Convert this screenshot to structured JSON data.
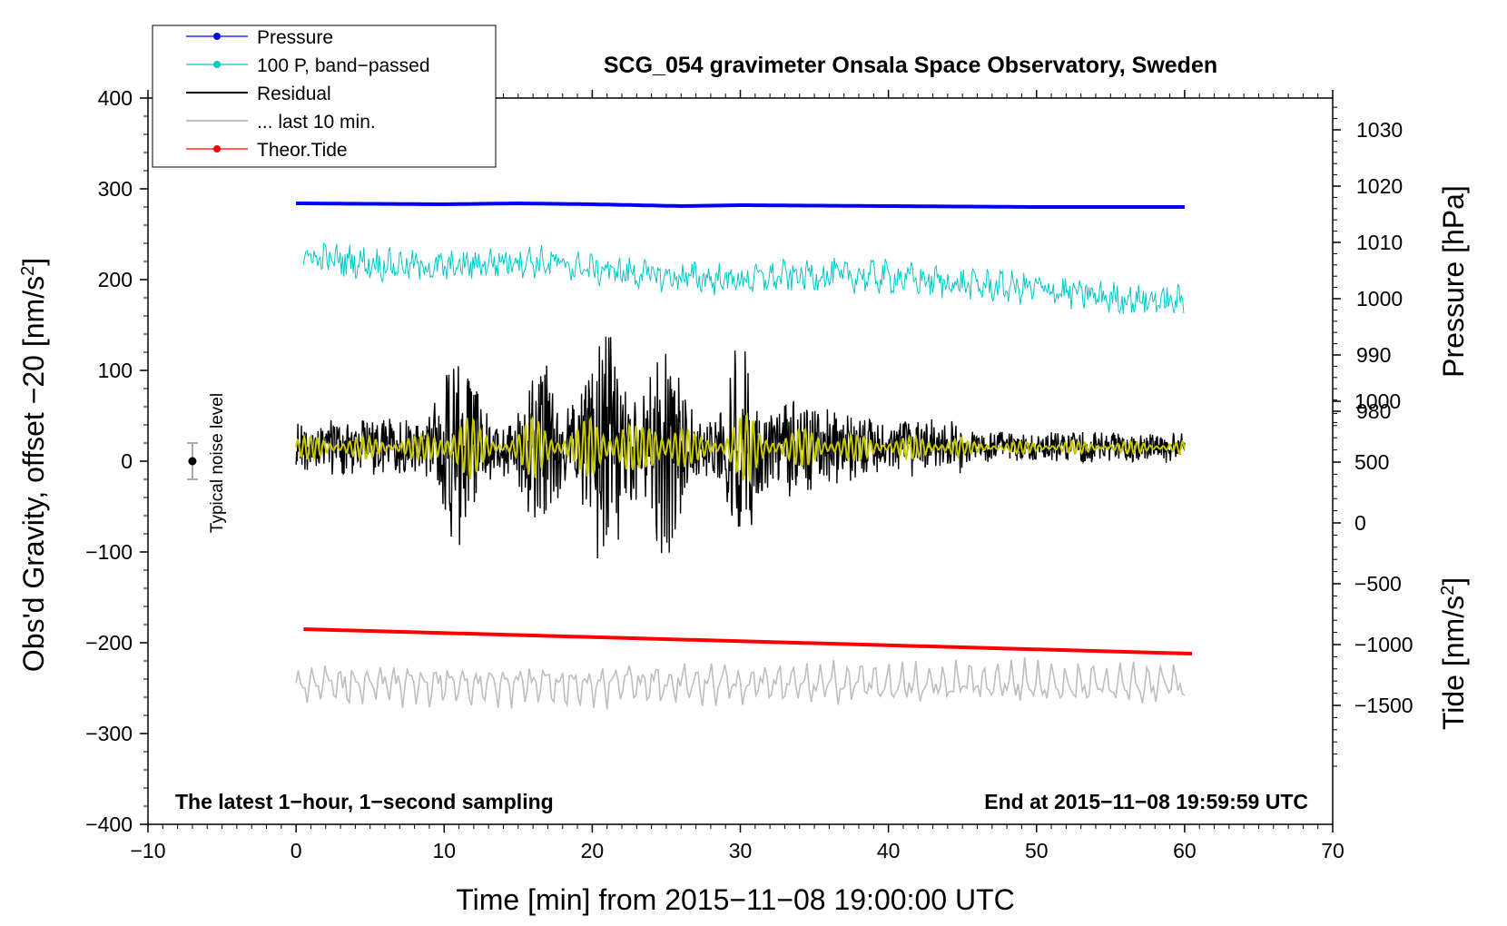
{
  "chart_data": {
    "type": "line",
    "title": "SCG_054 gravimeter Onsala Space Observatory, Sweden",
    "xlabel": "Time [min] from 2015−11−08 19:00:00 UTC",
    "ylabel_left": "Obs'd Gravity, offset −20 [nm/s²]",
    "ylabel_left_main": "Obs'd Gravity, offset −20 [nm/s",
    "ylabel_left_sup": "2",
    "ylabel_left_end": "]",
    "ylabel_right_top": "Pressure [hPa]",
    "ylabel_right_bottom": "Tide [nm/s²]",
    "ylabel_right_bottom_main": "Tide [nm/s",
    "ylabel_right_bottom_sup": "2",
    "ylabel_right_bottom_end": "]",
    "xlim": [
      -10,
      70
    ],
    "ylim": [
      -400,
      400
    ],
    "x_ticks": [
      -10,
      0,
      10,
      20,
      30,
      40,
      50,
      60,
      70
    ],
    "x_tick_labels": [
      "−10",
      "0",
      "10",
      "20",
      "30",
      "40",
      "50",
      "60",
      "70"
    ],
    "y_ticks": [
      400,
      300,
      200,
      100,
      0,
      -100,
      -200,
      -300,
      -400
    ],
    "y_tick_labels": [
      "400",
      "300",
      "200",
      "100",
      "0",
      "−100",
      "−200",
      "−300",
      "−400"
    ],
    "pressure_axis": {
      "ticks": [
        1030,
        1020,
        1010,
        1000,
        990,
        980
      ],
      "tick_labels": [
        "1030",
        "1020",
        "1010",
        "1000",
        "990",
        "980"
      ],
      "gravity_equiv": [
        365,
        303,
        241,
        179,
        117,
        55
      ]
    },
    "tide_axis": {
      "ticks": [
        1000,
        500,
        0,
        -500,
        -1000,
        -1500
      ],
      "tick_labels": [
        "1000",
        "500",
        "0",
        "−500",
        "−1000",
        "−1500"
      ],
      "gravity_equiv": [
        66,
        -1,
        -68,
        -135,
        -202,
        -269
      ]
    },
    "legend": [
      {
        "label": "Pressure",
        "color": "#0000ff",
        "marker": true
      },
      {
        "label": "100 P, band−passed",
        "color": "#00c8c8",
        "marker": true
      },
      {
        "label": "Residual",
        "color": "#000000",
        "marker": false
      },
      {
        "label": "... last 10 min.",
        "color": "#bebebe",
        "marker": false
      },
      {
        "label": "Theor.Tide",
        "color": "#ff0000",
        "marker": true
      }
    ],
    "series": [
      {
        "name": "Pressure",
        "color": "#0000ff",
        "x": [
          0,
          10,
          15,
          20,
          26,
          30,
          40,
          50,
          60
        ],
        "y": [
          284,
          283,
          284,
          283,
          281,
          282,
          281,
          280,
          280
        ]
      },
      {
        "name": "100 P, band−passed",
        "color": "#00c8c8",
        "x": [
          0,
          5,
          10,
          15,
          20,
          25,
          30,
          35,
          40,
          45,
          50,
          55,
          60
        ],
        "y": [
          226,
          218,
          213,
          222,
          212,
          203,
          200,
          205,
          203,
          195,
          190,
          180,
          175
        ]
      },
      {
        "name": "Residual",
        "color": "#000000",
        "x": [
          0,
          60
        ],
        "y": [
          15,
          15
        ]
      },
      {
        "name": "Residual filtered",
        "color": "#c8c800",
        "x": [
          0,
          60
        ],
        "y": [
          15,
          15
        ]
      },
      {
        "name": "... last 10 min.",
        "color": "#bebebe",
        "x": [
          0,
          60
        ],
        "y": [
          -245,
          -245
        ]
      },
      {
        "name": "Theor.Tide",
        "color": "#ff0000",
        "x": [
          0.5,
          60.5
        ],
        "y": [
          -185,
          -212
        ]
      }
    ],
    "noise_bar": {
      "x": -7,
      "y": 0,
      "err": 20,
      "label": "Typical noise level"
    },
    "annotations": {
      "bottom_left": "The latest 1−hour, 1−second sampling",
      "bottom_right": "End at 2015−11−08 19:59:59 UTC"
    },
    "grid": false
  }
}
